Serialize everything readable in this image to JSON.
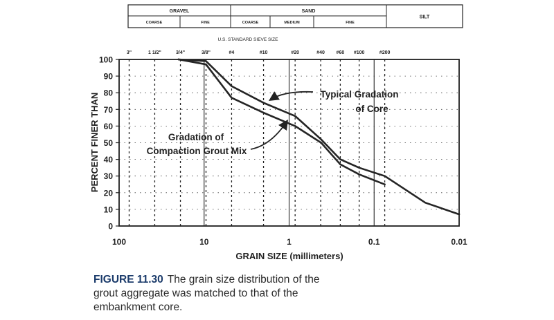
{
  "header_table": {
    "top": [
      {
        "label": "GRAVEL"
      },
      {
        "label": "SAND"
      },
      {
        "label": "SILT"
      }
    ],
    "bottom": [
      {
        "label": "COARSE"
      },
      {
        "label": "FINE"
      },
      {
        "label": "COARSE"
      },
      {
        "label": "MEDIUM"
      },
      {
        "label": "FINE"
      }
    ]
  },
  "sieve_title": "U.S. STANDARD SIEVE SIZE",
  "caption": {
    "number": "FIGURE 11.30",
    "text": "The grain size distribution of the grout aggregate was matched to that of the embankment core."
  },
  "chart_data": {
    "type": "line",
    "xscale": "log",
    "xreversed": true,
    "xlim": [
      100,
      0.01
    ],
    "ylim": [
      0,
      100
    ],
    "xlabel": "GRAIN SIZE (millimeters)",
    "ylabel": "PERCENT FINER THAN",
    "xticks": [
      {
        "value": 100,
        "label": "100"
      },
      {
        "value": 10,
        "label": "10"
      },
      {
        "value": 1,
        "label": "1"
      },
      {
        "value": 0.1,
        "label": "0.1"
      },
      {
        "value": 0.01,
        "label": "0.01"
      }
    ],
    "yticks": [
      0,
      10,
      20,
      30,
      40,
      50,
      60,
      70,
      80,
      90,
      100
    ],
    "sieves": [
      {
        "label": "3\"",
        "size": 76.2
      },
      {
        "label": "1 1/2\"",
        "size": 38.1
      },
      {
        "label": "3/4\"",
        "size": 19.0
      },
      {
        "label": "3/8\"",
        "size": 9.5
      },
      {
        "label": "#4",
        "size": 4.75
      },
      {
        "label": "#10",
        "size": 2.0
      },
      {
        "label": "#20",
        "size": 0.85
      },
      {
        "label": "#40",
        "size": 0.425
      },
      {
        "label": "#60",
        "size": 0.25
      },
      {
        "label": "#100",
        "size": 0.15
      },
      {
        "label": "#200",
        "size": 0.075
      }
    ],
    "series": [
      {
        "name": "Typical Gradation of Core",
        "x": [
          20,
          9.5,
          4.75,
          2.0,
          0.85,
          0.42,
          0.25,
          0.15,
          0.075,
          0.025,
          0.01
        ],
        "y": [
          100,
          99,
          84,
          74,
          66,
          52,
          40,
          35,
          30,
          14,
          7
        ]
      },
      {
        "name": "Gradation of Compaction Grout Mix",
        "x": [
          20,
          9.5,
          4.75,
          2.0,
          0.85,
          0.42,
          0.25,
          0.15,
          0.075
        ],
        "y": [
          100,
          97,
          77,
          68,
          60,
          50,
          37,
          31,
          25
        ]
      }
    ],
    "annotations": [
      {
        "text": "Typical Gradation",
        "text2": "of Core"
      },
      {
        "text": "Gradation of",
        "text2": "Compaction Grout Mix"
      }
    ]
  }
}
